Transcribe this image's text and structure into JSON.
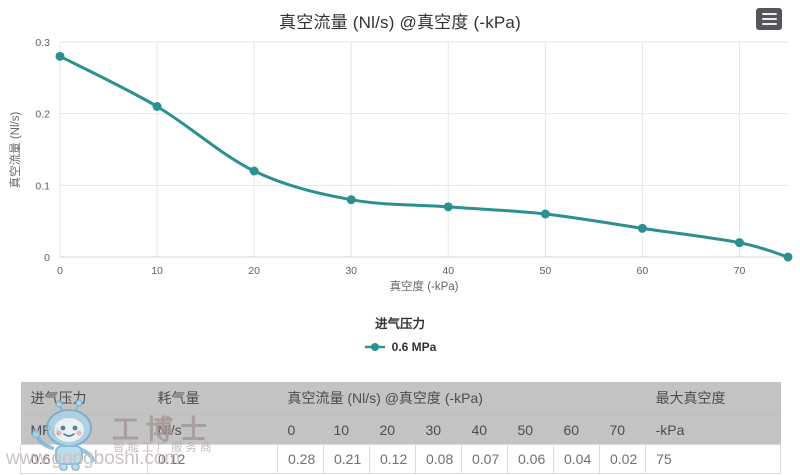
{
  "chart": {
    "title": "真空流量 (Nl/s) @真空度 (-kPa)",
    "xlabel": "真空度 (-kPa)",
    "ylabel": "真空流量 (Nl/s)",
    "legend_title": "进气压力",
    "line_color": "#2b908f"
  },
  "chart_data": {
    "type": "line",
    "title": "真空流量 (Nl/s) @真空度 (-kPa)",
    "xlabel": "真空度 (-kPa)",
    "ylabel": "真空流量 (Nl/s)",
    "x": [
      0,
      10,
      20,
      30,
      40,
      50,
      60,
      70,
      75
    ],
    "series": [
      {
        "name": "0.6 MPa",
        "values": [
          0.28,
          0.21,
          0.12,
          0.08,
          0.07,
          0.06,
          0.04,
          0.02,
          0
        ]
      }
    ],
    "xlim": [
      0,
      75
    ],
    "ylim": [
      0,
      0.3
    ],
    "x_ticks": [
      0,
      10,
      20,
      30,
      40,
      50,
      60,
      70
    ],
    "y_ticks": [
      0,
      0.1,
      0.2,
      0.3
    ],
    "grid": true,
    "legend_title": "进气压力",
    "legend_position": "bottom",
    "line_color": "#2b908f",
    "curve": "spline"
  },
  "table": {
    "group_headers": [
      {
        "label": "进气压力",
        "span": 1
      },
      {
        "label": "耗气量",
        "span": 1
      },
      {
        "label": "真空流量 (Nl/s) @真空度 (-kPa)",
        "span": 8
      },
      {
        "label": "最大真空度",
        "span": 1
      }
    ],
    "unit_headers": [
      "MPa",
      "Nl/s",
      "0",
      "10",
      "20",
      "30",
      "40",
      "50",
      "60",
      "70",
      "-kPa"
    ],
    "rows": [
      [
        "0.6",
        "0.12",
        "0.28",
        "0.21",
        "0.12",
        "0.08",
        "0.07",
        "0.06",
        "0.04",
        "0.02",
        "75"
      ]
    ]
  },
  "watermark": {
    "brand": "工博士",
    "tagline": "智能工厂服务商",
    "url": "www.gongboshi.com"
  }
}
